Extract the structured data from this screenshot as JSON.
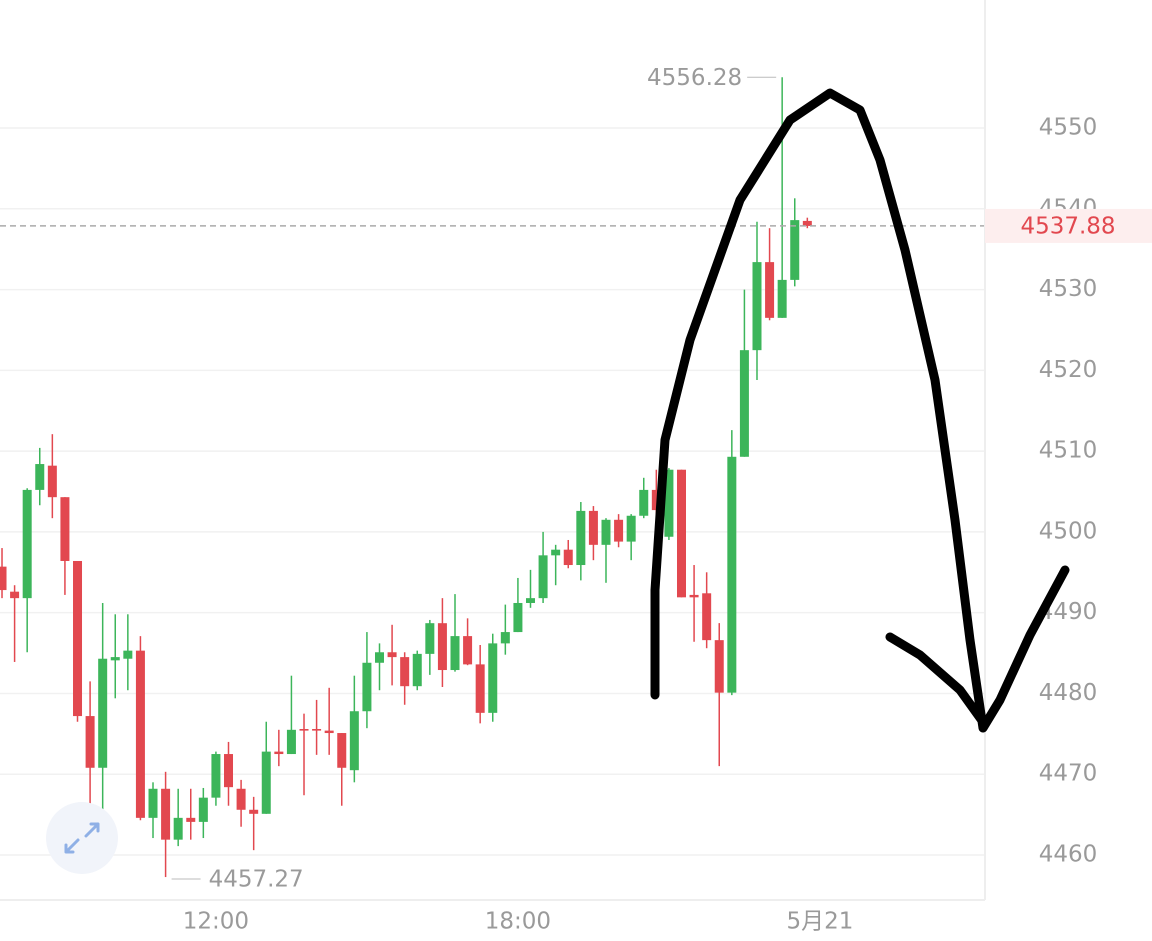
{
  "chart_data": {
    "type": "candlestick",
    "x": [
      7.75,
      8,
      8.25,
      8.5,
      8.75,
      9,
      9.25,
      9.5,
      9.75,
      10,
      10.25,
      10.5,
      10.75,
      11,
      11.25,
      11.5,
      11.75,
      12,
      12.25,
      12.5,
      12.75,
      13,
      13.25,
      13.5,
      13.75,
      14,
      14.25,
      14.5,
      14.75,
      15,
      15.25,
      15.5,
      15.75,
      16,
      16.25,
      16.5,
      16.75,
      17,
      17.25,
      17.5,
      17.75,
      18,
      18.25,
      18.5,
      18.75,
      19,
      19.25,
      19.5,
      19.75,
      20,
      20.25,
      20.5,
      20.75,
      21,
      21.25,
      21.5,
      21.75,
      22,
      22.25,
      22.5,
      22.75,
      23,
      23.25,
      23.5,
      23.75
    ],
    "open": [
      4495.7,
      4492.6,
      4491.8,
      4505.2,
      4508.2,
      4504.3,
      4496.4,
      4477.2,
      4470.8,
      4484.1,
      4484.3,
      4485.3,
      4464.6,
      4468.2,
      4461.9,
      4464.6,
      4464.1,
      4467.1,
      4472.5,
      4468.2,
      4465.6,
      4465.1,
      4472.8,
      4472.5,
      4475.6,
      4475.6,
      4475.4,
      4475.1,
      4470.5,
      4477.8,
      4483.8,
      4485.1,
      4484.5,
      4480.9,
      4484.9,
      4488.7,
      4482.9,
      4487.1,
      4483.6,
      4477.6,
      4486.2,
      4487.6,
      4491.2,
      4491.8,
      4497.1,
      4497.8,
      4495.9,
      4502.6,
      4498.4,
      4501.5,
      4498.8,
      4502.0,
      4505.2,
      4499.4,
      4507.7,
      4492.2,
      4492.4,
      4486.6,
      4480.1,
      4509.3,
      4522.5,
      4533.4,
      4526.5,
      4531.2,
      4538.5
    ],
    "high": [
      4498.0,
      4493.4,
      4505.4,
      4510.4,
      4512.1,
      4504.3,
      4496.4,
      4481.5,
      4491.2,
      4489.8,
      4489.8,
      4487.1,
      4469.0,
      4470.3,
      4468.2,
      4468.2,
      4468.3,
      4472.8,
      4474.0,
      4469.3,
      4467.2,
      4476.5,
      4475.5,
      4482.2,
      4477.5,
      4479.2,
      4480.7,
      4475.1,
      4482.2,
      4487.6,
      4486.2,
      4488.5,
      4485.1,
      4485.3,
      4489.1,
      4491.8,
      4492.3,
      4489.3,
      4486.0,
      4487.4,
      4491.0,
      4494.3,
      4495.3,
      4500.0,
      4498.4,
      4499.0,
      4503.7,
      4503.2,
      4501.7,
      4502.2,
      4502.2,
      4506.7,
      4507.7,
      4507.9,
      4507.7,
      4495.9,
      4495.0,
      4488.7,
      4512.6,
      4530.0,
      4538.4,
      4537.6,
      4556.28,
      4541.3,
      4538.9
    ],
    "low": [
      4491.8,
      4483.9,
      4485.1,
      4503.3,
      4501.7,
      4492.2,
      4476.5,
      4458.4,
      4465.6,
      4479.4,
      4480.4,
      4464.3,
      4462.1,
      4457.27,
      4461.1,
      4461.9,
      4462.1,
      4466.1,
      4466.1,
      4463.5,
      4460.6,
      4465.1,
      4471.0,
      4472.5,
      4467.4,
      4472.4,
      4472.4,
      4466.1,
      4469.0,
      4475.7,
      4480.4,
      4481.0,
      4478.6,
      4480.4,
      4482.3,
      4480.8,
      4482.7,
      4483.5,
      4476.3,
      4476.5,
      4484.8,
      4487.6,
      4490.6,
      4491.2,
      4493.4,
      4495.5,
      4494.0,
      4496.5,
      4493.7,
      4498.1,
      4496.5,
      4501.7,
      4499.0,
      4499.0,
      4491.9,
      4486.4,
      4485.6,
      4471.0,
      4479.8,
      4509.3,
      4518.8,
      4526.2,
      4526.5,
      4530.4,
      4537.6
    ],
    "close": [
      4492.8,
      4491.8,
      4505.2,
      4508.4,
      4504.3,
      4496.4,
      4477.2,
      4470.8,
      4484.3,
      4484.5,
      4485.3,
      4464.6,
      4468.2,
      4461.9,
      4464.6,
      4464.1,
      4467.1,
      4472.5,
      4468.4,
      4465.6,
      4465.1,
      4472.8,
      4472.5,
      4475.5,
      4475.4,
      4475.4,
      4475.1,
      4470.8,
      4477.8,
      4483.8,
      4485.1,
      4484.5,
      4480.9,
      4484.9,
      4488.7,
      4482.9,
      4487.1,
      4483.6,
      4477.6,
      4486.2,
      4487.6,
      4491.2,
      4491.8,
      4497.1,
      4497.8,
      4495.9,
      4502.6,
      4498.4,
      4501.5,
      4498.8,
      4502.0,
      4505.2,
      4502.7,
      4507.7,
      4491.9,
      4491.9,
      4486.6,
      4480.1,
      4509.3,
      4522.5,
      4533.4,
      4526.5,
      4531.2,
      4538.6,
      4537.88
    ],
    "up_color": "#3cb55a",
    "down_color": "#e2484f",
    "last_price_color": "#e2484f",
    "xlim": [
      7.71,
      27.28
    ],
    "xticks": [
      {
        "value": 12,
        "label": "12:00"
      },
      {
        "value": 18,
        "label": "18:00"
      },
      {
        "value": 24,
        "label": "5月21"
      }
    ],
    "ylim": [
      4454.43,
      4565.85
    ],
    "yticks": [
      4460,
      4470,
      4480,
      4490,
      4500,
      4510,
      4520,
      4530,
      4540,
      4550
    ],
    "grid": true
  }
}
